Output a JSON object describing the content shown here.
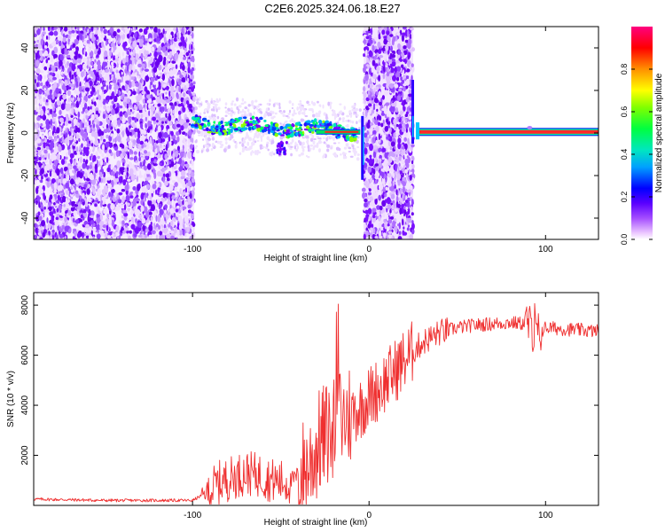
{
  "title": "C2E6.2025.324.06.18.E27",
  "chart_data": [
    {
      "type": "heatmap",
      "xlabel": "Height of straight line (km)",
      "ylabel": "Frequency (Hz)",
      "xlim": [
        -190,
        130
      ],
      "ylim": [
        -50,
        50
      ],
      "x_ticks": [
        -100,
        0,
        100
      ],
      "x_tick_labels": [
        "-100",
        "0",
        "100"
      ],
      "y_ticks": [
        -40,
        -20,
        0,
        20,
        40
      ],
      "y_tick_labels": [
        "-40",
        "-20",
        "0",
        "20",
        "40"
      ],
      "colorbar": {
        "label": "Normalized spectral amplitude",
        "range": [
          0,
          1
        ],
        "ticks": [
          0,
          0.2,
          0.4,
          0.6,
          0.8
        ],
        "tick_labels": [
          "0.0",
          "0.2",
          "0.4",
          "0.6",
          "0.8"
        ],
        "colormap": [
          "#ffffff",
          "#d9b8ff",
          "#7a00ff",
          "#0000ff",
          "#00c8ff",
          "#00ff80",
          "#7cff00",
          "#ffff00",
          "#ff8000",
          "#ff0000",
          "#ff0080"
        ]
      },
      "regions": [
        {
          "name": "noise",
          "x_range": [
            -190,
            -99
          ],
          "amplitude": "0.0-0.3"
        },
        {
          "name": "carrier-track",
          "x_range": [
            -100,
            -5
          ],
          "freq_hz": "0 to 5",
          "amplitude": "0.2-0.9"
        },
        {
          "name": "noise",
          "x_range": [
            -3,
            25
          ],
          "amplitude": "0.0-0.3"
        },
        {
          "name": "carrier-line",
          "x_range": [
            28,
            130
          ],
          "freq_hz": 0.5,
          "amplitude": "0.9-1.0"
        }
      ]
    },
    {
      "type": "line",
      "xlabel": "Height of straight line (km)",
      "ylabel": "SNR (10 * v/v)",
      "xlim": [
        -190,
        130
      ],
      "ylim": [
        0,
        8500
      ],
      "x_ticks": [
        -100,
        0,
        100
      ],
      "x_tick_labels": [
        "-100",
        "0",
        "100"
      ],
      "y_ticks": [
        2000,
        4000,
        6000,
        8000
      ],
      "y_tick_labels": [
        "2000",
        "4000",
        "6000",
        "8000"
      ],
      "color": "#ef2f2f",
      "series": [
        {
          "name": "SNR",
          "x": [
            -190,
            -150,
            -100,
            -92,
            -85,
            -78,
            -70,
            -62,
            -55,
            -45,
            -35,
            -28,
            -22,
            -18,
            -12,
            -5,
            0,
            10,
            20,
            30,
            40,
            50,
            60,
            70,
            80,
            90,
            95,
            100,
            110,
            120,
            130
          ],
          "y": [
            250,
            200,
            200,
            500,
            900,
            1100,
            1300,
            1200,
            1000,
            900,
            1500,
            2500,
            3000,
            3300,
            3600,
            3900,
            4300,
            5000,
            5800,
            6500,
            6900,
            7100,
            7200,
            7250,
            7300,
            7250,
            6800,
            7100,
            7050,
            7000,
            6950
          ]
        }
      ]
    }
  ]
}
